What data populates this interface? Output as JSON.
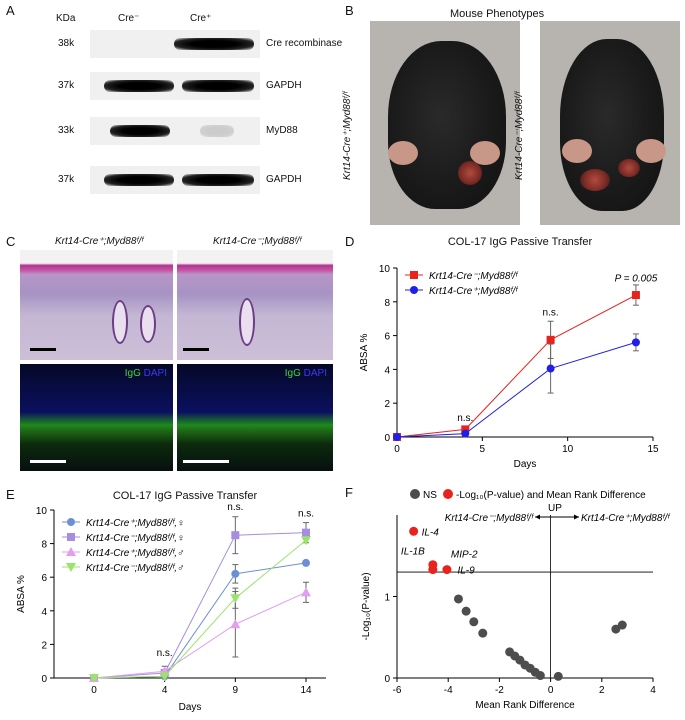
{
  "panels": {
    "A": {
      "letter": "A",
      "kda_header": "KDa",
      "lanes": [
        "Cre⁻",
        "Cre⁺"
      ],
      "rows": [
        {
          "kda": "38k",
          "label": "Cre recombinase"
        },
        {
          "kda": "37k",
          "label": "GAPDH"
        },
        {
          "kda": "33k",
          "label": "MyD88"
        },
        {
          "kda": "37k",
          "label": "GAPDH"
        }
      ]
    },
    "B": {
      "letter": "B",
      "title": "Mouse Phenotypes",
      "left_label": "Krt14-Cre⁺;Myd88ᶠ/ᶠ",
      "right_label": "Krt14-Cre⁻;Myd88ᶠ/ᶠ"
    },
    "C": {
      "letter": "C",
      "left_title": "Krt14-Cre⁺;Myd88ᶠ/ᶠ",
      "right_title": "Krt14-Cre⁻;Myd88ᶠ/ᶠ",
      "if_igg": "IgG",
      "if_dapi": "DAPI"
    },
    "D": {
      "letter": "D"
    },
    "E": {
      "letter": "E"
    },
    "F": {
      "letter": "F"
    }
  },
  "colors": {
    "red": "#e8231d",
    "blue": "#1f1fe8",
    "steelblue": "#6c8fd6",
    "purple": "#a58de0",
    "violet": "#e39ef0",
    "green": "#9be36a",
    "gray": "#4d4d4d",
    "if_green": "#3fd63a",
    "if_blue": "#3a3aff"
  },
  "chart_data": [
    {
      "panel": "D",
      "type": "line",
      "title": "COL-17 IgG Passive Transfer",
      "xlabel": "Days",
      "ylabel": "ABSA %",
      "xlim": [
        0,
        15
      ],
      "ylim": [
        0,
        10
      ],
      "xticks": [
        0,
        5,
        10,
        15
      ],
      "yticks": [
        0,
        2,
        4,
        6,
        8,
        10
      ],
      "legend_position": "top-left",
      "series": [
        {
          "name": "Krt14-Cre⁻;Myd88ᶠ/ᶠ",
          "color": "#e8231d",
          "marker": "square",
          "x": [
            0,
            4,
            9,
            14
          ],
          "y": [
            0,
            0.45,
            5.75,
            8.4
          ],
          "err": [
            0,
            0.1,
            1.1,
            0.6
          ]
        },
        {
          "name": "Krt14-Cre⁺;Myd88ᶠ/ᶠ",
          "color": "#1f1fe8",
          "marker": "circle",
          "x": [
            0,
            4,
            9,
            14
          ],
          "y": [
            0,
            0.2,
            4.05,
            5.6
          ],
          "err": [
            0,
            0.1,
            1.45,
            0.5
          ]
        }
      ],
      "annotations": [
        {
          "text": "n.s.",
          "x": 4,
          "y": 0.95
        },
        {
          "text": "n.s.",
          "x": 9,
          "y": 7.2
        },
        {
          "text": "P = 0.005",
          "x": 14,
          "y": 9.2
        }
      ]
    },
    {
      "panel": "E",
      "type": "line",
      "title": "COL-17 IgG Passive Transfer",
      "xlabel": "Days",
      "ylabel": "ABSA %",
      "categories": [
        "0",
        "4",
        "9",
        "14"
      ],
      "ylim": [
        0,
        10
      ],
      "yticks": [
        0,
        2,
        4,
        6,
        8,
        10
      ],
      "legend_position": "top-left",
      "series": [
        {
          "name": "Krt14-Cre⁺;Myd88ᶠ/ᶠ,♀",
          "color": "#6c8fd6",
          "marker": "circle",
          "values": [
            0,
            0.1,
            6.2,
            6.85
          ],
          "err": [
            0,
            0.15,
            0.55,
            0
          ]
        },
        {
          "name": "Krt14-Cre⁻;Myd88ᶠ/ᶠ,♀",
          "color": "#a58de0",
          "marker": "square",
          "values": [
            0,
            0.3,
            8.5,
            8.65
          ],
          "err": [
            0,
            0.2,
            1.1,
            0.6
          ]
        },
        {
          "name": "Krt14-Cre⁺;Myd88ᶠ/ᶠ,♂",
          "color": "#e39ef0",
          "marker": "triangle-up",
          "values": [
            0,
            0.4,
            3.2,
            5.1
          ],
          "err": [
            0,
            0.3,
            1.95,
            0.6
          ]
        },
        {
          "name": "Krt14-Cre⁻;Myd88ᶠ/ᶠ,♂",
          "color": "#9be36a",
          "marker": "triangle-down",
          "values": [
            0,
            0.1,
            4.75,
            8.2
          ],
          "err": [
            0,
            0.15,
            0.6,
            0
          ]
        }
      ],
      "annotations": [
        {
          "text": "n.s.",
          "category": "4",
          "y": 1.3
        },
        {
          "text": "n.s.",
          "category": "9",
          "y": 10.0
        },
        {
          "text": "n.s.",
          "category": "14",
          "y": 9.6
        }
      ]
    },
    {
      "panel": "F",
      "type": "scatter",
      "xlabel": "Mean Rank Difference",
      "ylabel": "-Log₁₀(P-value)",
      "xlim": [
        -6,
        4
      ],
      "ylim": [
        0,
        2
      ],
      "xticks": [
        -6,
        -4,
        -2,
        0,
        2,
        4
      ],
      "yticks": [
        0,
        1
      ],
      "threshold_y": 1.3,
      "legend": [
        {
          "label": "NS",
          "color": "#4d4d4d"
        },
        {
          "label": "-Log₁₀(P-value) and Mean Rank Difference",
          "color": "#e8231d"
        }
      ],
      "direction": {
        "up_label": "UP",
        "left": "Krt14-Cre⁻;Myd88ᶠ/ᶠ",
        "right": "Krt14-Cre⁺;Myd88ᶠ/ᶠ"
      },
      "significant": [
        {
          "label": "IL-4",
          "x": -5.35,
          "y": 1.8
        },
        {
          "label": "IL-1B",
          "x": -4.6,
          "y": 1.39
        },
        {
          "label": "MIP-2",
          "x": -4.05,
          "y": 1.33
        },
        {
          "label": "IL-9",
          "x": -4.6,
          "y": 1.33
        }
      ],
      "nonsignificant": [
        {
          "x": -3.6,
          "y": 0.97
        },
        {
          "x": -3.3,
          "y": 0.82
        },
        {
          "x": -3.0,
          "y": 0.69
        },
        {
          "x": -2.65,
          "y": 0.55
        },
        {
          "x": -1.6,
          "y": 0.32
        },
        {
          "x": -1.4,
          "y": 0.27
        },
        {
          "x": -1.2,
          "y": 0.22
        },
        {
          "x": -1.0,
          "y": 0.16
        },
        {
          "x": -0.8,
          "y": 0.12
        },
        {
          "x": -0.6,
          "y": 0.07
        },
        {
          "x": -0.4,
          "y": 0.03
        },
        {
          "x": 0.3,
          "y": 0.02
        },
        {
          "x": 2.55,
          "y": 0.6
        },
        {
          "x": 2.8,
          "y": 0.65
        }
      ]
    }
  ]
}
